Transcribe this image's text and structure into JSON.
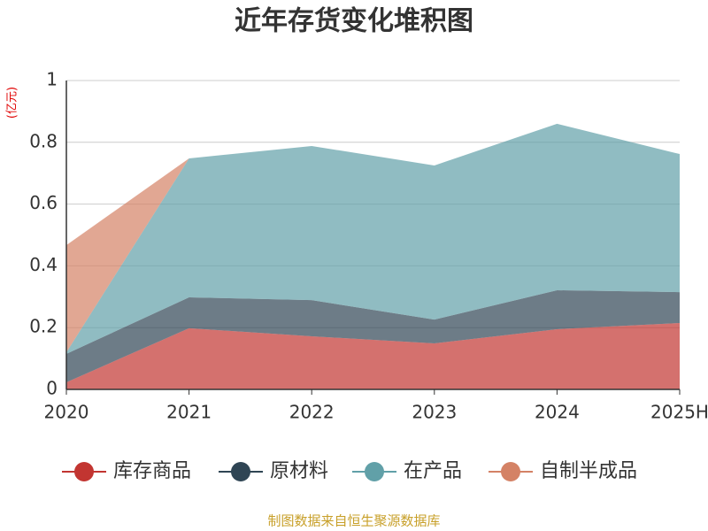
{
  "chart_data": {
    "type": "stacked-area",
    "title": "近年存货变化堆积图",
    "y_unit": "(亿元)",
    "source": "制图数据来自恒生聚源数据库",
    "categories": [
      "2020",
      "2021",
      "2022",
      "2023",
      "2024",
      "2025H"
    ],
    "series": [
      {
        "name": "库存商品",
        "color": "#c23531",
        "values": [
          0.023,
          0.198,
          0.172,
          0.149,
          0.195,
          0.215
        ]
      },
      {
        "name": "原材料",
        "color": "#2f4554",
        "values": [
          0.092,
          0.1,
          0.117,
          0.077,
          0.126,
          0.1
        ]
      },
      {
        "name": "在产品",
        "color": "#61a0a8",
        "values": [
          0.005,
          0.45,
          0.499,
          0.499,
          0.539,
          0.447
        ]
      },
      {
        "name": "自制半成品",
        "color": "#d48265",
        "values": [
          0.347,
          0,
          0,
          0,
          0,
          0
        ]
      }
    ],
    "ylim": [
      0,
      1
    ],
    "yticks": [
      0,
      0.2,
      0.4,
      0.6,
      0.8,
      1
    ],
    "grid": true
  }
}
